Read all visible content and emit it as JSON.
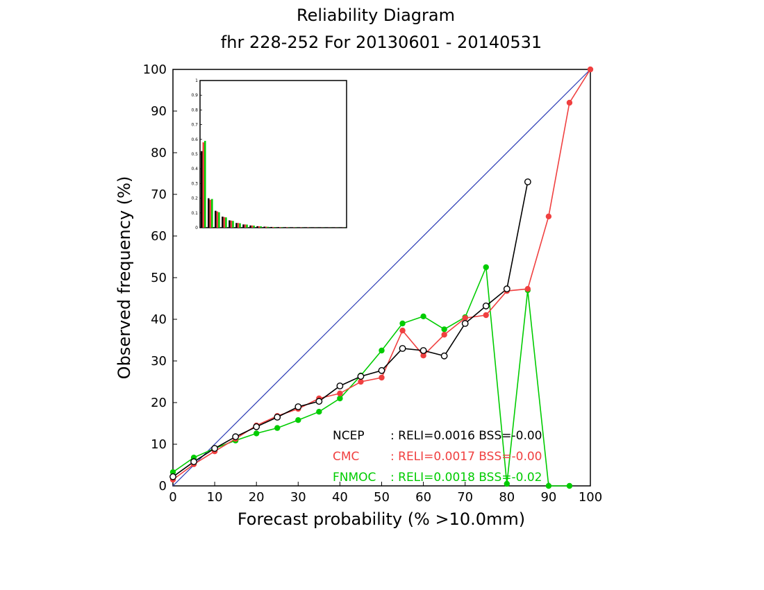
{
  "chart_data": {
    "type": "line",
    "title": "Reliability Diagram",
    "subtitle": "fhr 228-252 For 20130601 - 20140531",
    "xlabel": "Forecast probability (% >10.0mm)",
    "ylabel": "Observed frequency (%)",
    "xlim": [
      0,
      100
    ],
    "ylim": [
      0,
      100
    ],
    "xticks": [
      "0",
      "10",
      "20",
      "30",
      "40",
      "50",
      "60",
      "70",
      "80",
      "90",
      "100"
    ],
    "yticks": [
      "0",
      "10",
      "20",
      "30",
      "40",
      "50",
      "60",
      "70",
      "80",
      "90",
      "100"
    ],
    "grid": false,
    "legend_position": "bottom-right",
    "reference_line": {
      "from": [
        0,
        0
      ],
      "to": [
        100,
        100
      ],
      "color": "#2b3bb5"
    },
    "series": [
      {
        "name": "NCEP",
        "stats": ": RELI=0.0016 BSS=-0.00",
        "color": "#000000",
        "marker": "open-circle",
        "x": [
          0,
          5,
          10,
          15,
          20,
          25,
          30,
          35,
          40,
          45,
          50,
          55,
          60,
          65,
          70,
          75,
          80,
          85
        ],
        "y": [
          2.2,
          5.8,
          9.0,
          11.8,
          14.2,
          16.5,
          19.0,
          20.3,
          24.0,
          26.3,
          27.7,
          33.0,
          32.5,
          31.2,
          39.0,
          43.2,
          47.3,
          73.0
        ]
      },
      {
        "name": "CMC",
        "stats": ": RELI=0.0017 BSS=-0.00",
        "color": "#f04040",
        "marker": "filled-circle",
        "x": [
          0,
          5,
          10,
          15,
          20,
          25,
          30,
          35,
          40,
          45,
          50,
          55,
          60,
          65,
          70,
          75,
          80,
          85,
          90,
          95,
          100
        ],
        "y": [
          1.5,
          5.2,
          8.3,
          11.3,
          14.5,
          16.8,
          18.5,
          21.0,
          22.2,
          25.0,
          26.0,
          37.3,
          31.3,
          36.3,
          40.3,
          41.0,
          46.8,
          47.3,
          64.7,
          92.0,
          100.0
        ]
      },
      {
        "name": "FNMOC",
        "stats": ": RELI=0.0018 BSS=-0.02",
        "color": "#00cc00",
        "marker": "filled-circle",
        "x": [
          0,
          5,
          10,
          15,
          20,
          25,
          30,
          35,
          40,
          45,
          50,
          55,
          60,
          65,
          70,
          75,
          80,
          85,
          90,
          95
        ],
        "y": [
          3.3,
          6.8,
          9.0,
          10.9,
          12.6,
          13.9,
          15.8,
          17.8,
          21.0,
          26.5,
          32.5,
          39.0,
          40.7,
          37.6,
          40.5,
          52.5,
          0.5,
          47.0,
          0.0,
          0.0
        ]
      }
    ],
    "inset": {
      "type": "bar",
      "ylim": [
        0,
        1
      ],
      "yticks": [
        "0",
        "0.1",
        "0.2",
        "0.3",
        "0.4",
        "0.5",
        "0.6",
        "0.7",
        "0.8",
        "0.9",
        "1"
      ],
      "bin_count": 21,
      "series": [
        {
          "name": "NCEP",
          "color": "#000000",
          "values": [
            0.52,
            0.2,
            0.115,
            0.075,
            0.05,
            0.032,
            0.022,
            0.015,
            0.01,
            0.007,
            0.005,
            0.004,
            0.003,
            0.002,
            0.002,
            0.001,
            0.001,
            0.001,
            0.001,
            0.001,
            0.001
          ]
        },
        {
          "name": "CMC",
          "color": "#f04040",
          "values": [
            0.58,
            0.19,
            0.11,
            0.072,
            0.048,
            0.032,
            0.022,
            0.015,
            0.01,
            0.007,
            0.005,
            0.004,
            0.003,
            0.002,
            0.002,
            0.002,
            0.001,
            0.001,
            0.001,
            0.001,
            0.001
          ]
        },
        {
          "name": "FNMOC",
          "color": "#00cc00",
          "values": [
            0.59,
            0.195,
            0.105,
            0.07,
            0.046,
            0.03,
            0.021,
            0.014,
            0.009,
            0.006,
            0.004,
            0.003,
            0.002,
            0.002,
            0.001,
            0.001,
            0.001,
            0.001,
            0.001,
            0.001,
            0.001
          ]
        }
      ]
    }
  }
}
